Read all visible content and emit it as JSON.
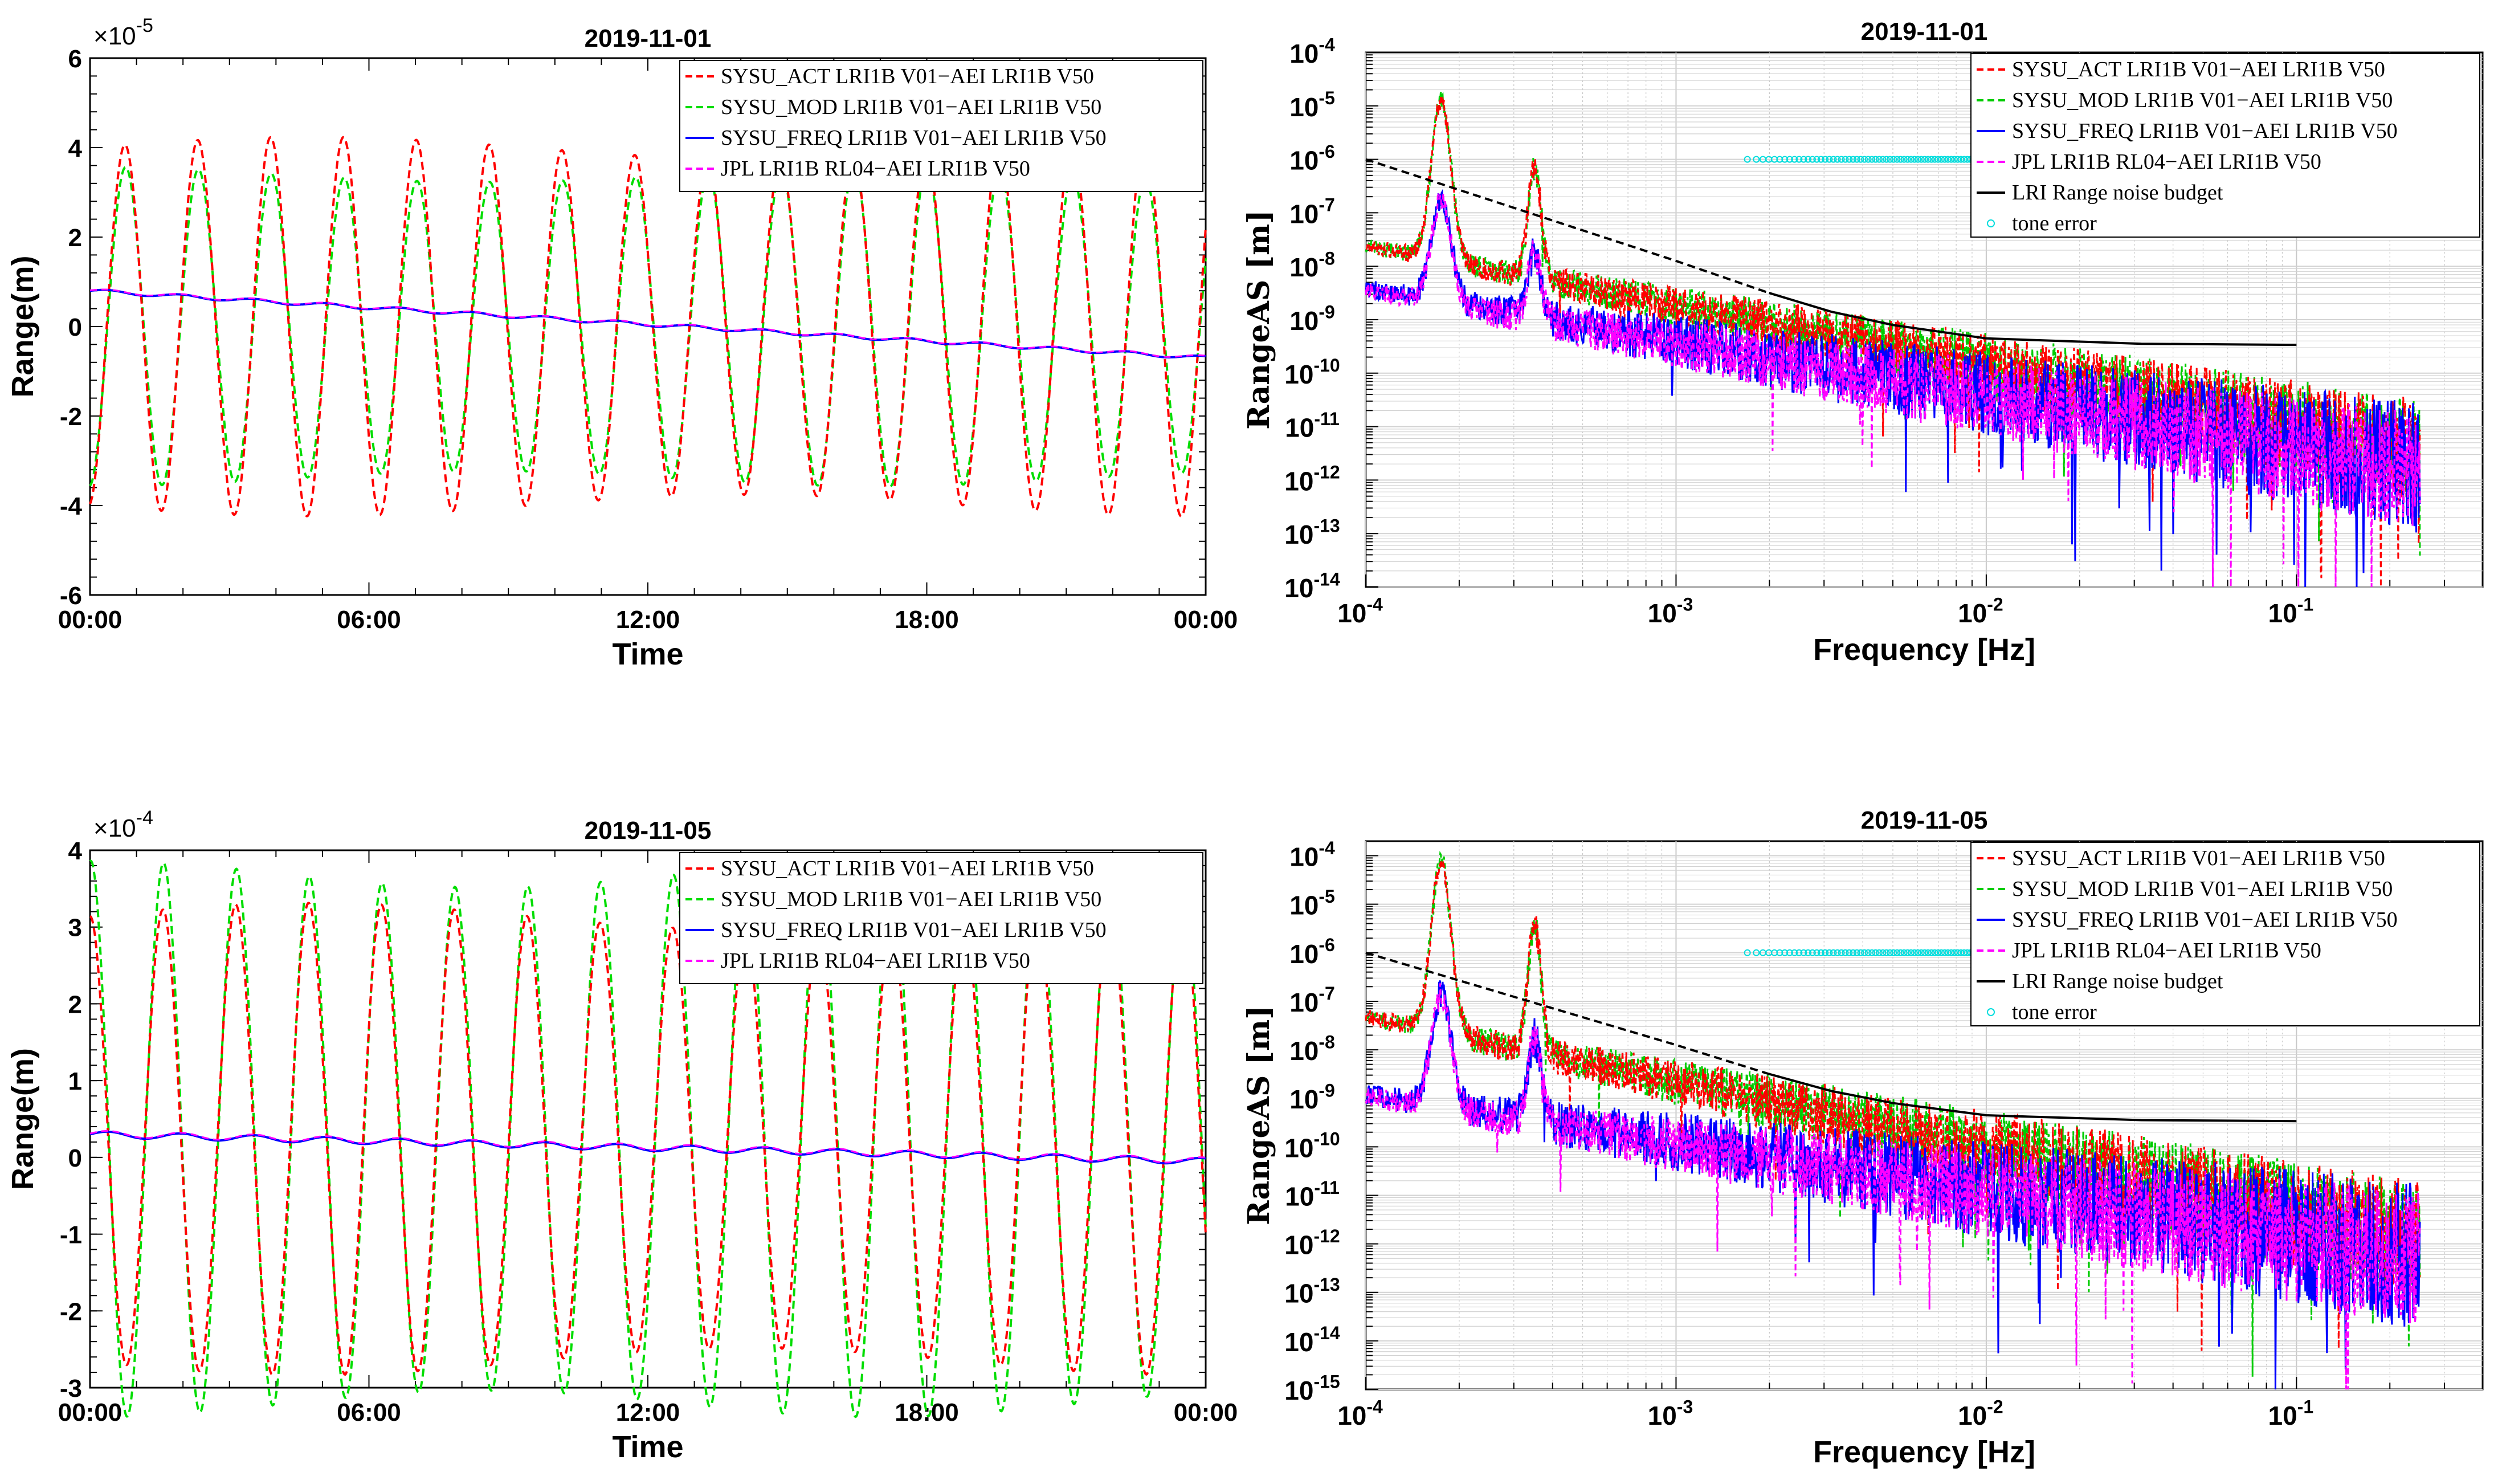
{
  "chart_data": [
    {
      "id": "top-left",
      "type": "line",
      "title": "2019-11-01",
      "xlabel": "Time",
      "ylabel": "Range(m)",
      "y_multiplier": "×10",
      "y_exponent": "-5",
      "x_ticks": [
        "00:00",
        "06:00",
        "12:00",
        "18:00",
        "00:00"
      ],
      "x_range_hours": [
        0,
        24
      ],
      "y_ticks": [
        "6",
        "4",
        "2",
        "0",
        "-2",
        "-4",
        "-6"
      ],
      "ylim": [
        -6,
        6
      ],
      "ytick_values": [
        6,
        4,
        2,
        0,
        -2,
        -4,
        -6
      ],
      "series_model": {
        "orbit_period_hours": 1.567,
        "act_amp": 4.0,
        "mod_amp": 3.4,
        "phase_hours": 0.75,
        "freq_start": 0.8,
        "freq_end": -0.7
      },
      "series": [
        {
          "name": "SYSU_ACT LRI1B V01−AEI LRI1B V50",
          "color": "#ff0000",
          "dash": "dashed",
          "amplitude_approx": 4.0
        },
        {
          "name": "SYSU_MOD LRI1B V01−AEI LRI1B V50",
          "color": "#00dd00",
          "dash": "dashed",
          "amplitude_approx": 3.4
        },
        {
          "name": "SYSU_FREQ LRI1B V01−AEI LRI1B V50",
          "color": "#0000ff",
          "dash": "solid",
          "start": 0.8,
          "end": -0.7
        },
        {
          "name": "JPL LRI1B RL04−AEI LRI1B V50",
          "color": "#ff00ff",
          "dash": "dashed",
          "start": 0.8,
          "end": -0.7
        }
      ]
    },
    {
      "id": "top-right",
      "type": "line",
      "title": "2019-11-01",
      "xlabel": "Frequency [Hz]",
      "ylabel": "RangeAS [m]",
      "x_scale": "log",
      "y_scale": "log",
      "xlim_exp": [
        -4,
        -0.4
      ],
      "ylim_exp": [
        -14,
        -4
      ],
      "x_ticks": [
        {
          "base": "10",
          "exp": "-4",
          "v": -4
        },
        {
          "base": "10",
          "exp": "-3",
          "v": -3
        },
        {
          "base": "10",
          "exp": "-2",
          "v": -2
        },
        {
          "base": "10",
          "exp": "-1",
          "v": -1
        }
      ],
      "y_ticks": [
        {
          "base": "10",
          "exp": "-4",
          "v": -4
        },
        {
          "base": "10",
          "exp": "-5",
          "v": -5
        },
        {
          "base": "10",
          "exp": "-6",
          "v": -6
        },
        {
          "base": "10",
          "exp": "-7",
          "v": -7
        },
        {
          "base": "10",
          "exp": "-8",
          "v": -8
        },
        {
          "base": "10",
          "exp": "-9",
          "v": -9
        },
        {
          "base": "10",
          "exp": "-10",
          "v": -10
        },
        {
          "base": "10",
          "exp": "-11",
          "v": -11
        },
        {
          "base": "10",
          "exp": "-12",
          "v": -12
        },
        {
          "base": "10",
          "exp": "-13",
          "v": -13
        },
        {
          "base": "10",
          "exp": "-14",
          "v": -14
        }
      ],
      "spectrum_model": {
        "act_peak1": -4.6,
        "act_peak2": -5.5,
        "act_base": -7.6,
        "freq_peak1": -6.5,
        "freq_peak2": -7.2,
        "freq_base": -8.4,
        "noise_end_low": -12.6,
        "noise_end_high": -10.7
      },
      "series": [
        {
          "name": "SYSU_ACT LRI1B V01−AEI LRI1B V50",
          "color": "#ff0000",
          "dash": "dashed"
        },
        {
          "name": "SYSU_MOD LRI1B V01−AEI LRI1B V50",
          "color": "#00cc00",
          "dash": "dashed"
        },
        {
          "name": "SYSU_FREQ LRI1B V01−AEI LRI1B V50",
          "color": "#0000ff",
          "dash": "solid"
        },
        {
          "name": "JPL LRI1B RL04−AEI LRI1B V50",
          "color": "#ff00ff",
          "dash": "dashed"
        },
        {
          "name": "LRI Range noise budget",
          "color": "#000000",
          "dash": "solid",
          "points_log": [
            [
              -4,
              -6
            ],
            [
              -3.5,
              -6.95
            ],
            [
              -3,
              -7.9
            ],
            [
              -2.7,
              -8.5
            ],
            [
              -2.5,
              -8.85
            ],
            [
              -2.3,
              -9.1
            ],
            [
              -2,
              -9.35
            ],
            [
              -1.5,
              -9.45
            ],
            [
              -1,
              -9.47
            ]
          ]
        },
        {
          "name": "tone error",
          "color": "#00dddd",
          "marker": "circle",
          "x_log_range": [
            -2.77,
            -2.02
          ],
          "y_log": -6.0
        }
      ]
    },
    {
      "id": "bottom-left",
      "type": "line",
      "title": "2019-11-05",
      "xlabel": "Time",
      "ylabel": "Range(m)",
      "y_multiplier": "×10",
      "y_exponent": "-4",
      "x_ticks": [
        "00:00",
        "06:00",
        "12:00",
        "18:00",
        "00:00"
      ],
      "x_range_hours": [
        0,
        24
      ],
      "y_ticks": [
        "4",
        "3",
        "2",
        "1",
        "0",
        "-1",
        "-2",
        "-3"
      ],
      "ylim": [
        -3,
        4
      ],
      "ytick_values": [
        4,
        3,
        2,
        1,
        0,
        -1,
        -2,
        -3
      ],
      "series_model": {
        "orbit_period_hours": 1.567,
        "act_amp": 2.9,
        "mod_amp": 3.45,
        "phase_hours": 0.0,
        "offset": 0.6,
        "freq_start": 0.3,
        "freq_end": -0.05
      },
      "series": [
        {
          "name": "SYSU_ACT LRI1B V01−AEI LRI1B V50",
          "color": "#ff0000",
          "dash": "dashed",
          "amplitude_approx": 2.9
        },
        {
          "name": "SYSU_MOD LRI1B V01−AEI LRI1B V50",
          "color": "#00dd00",
          "dash": "dashed",
          "amplitude_approx": 3.45
        },
        {
          "name": "SYSU_FREQ LRI1B V01−AEI LRI1B V50",
          "color": "#0000ff",
          "dash": "solid",
          "start": 0.3,
          "end": -0.05
        },
        {
          "name": "JPL LRI1B RL04−AEI LRI1B V50",
          "color": "#ff00ff",
          "dash": "dashed",
          "start": 0.3,
          "end": -0.05
        }
      ]
    },
    {
      "id": "bottom-right",
      "type": "line",
      "title": "2019-11-05",
      "xlabel": "Frequency [Hz]",
      "ylabel": "RangeAS [m]",
      "x_scale": "log",
      "y_scale": "log",
      "xlim_exp": [
        -4,
        -0.4
      ],
      "ylim_exp": [
        -15,
        -3.7
      ],
      "x_ticks": [
        {
          "base": "10",
          "exp": "-4",
          "v": -4
        },
        {
          "base": "10",
          "exp": "-3",
          "v": -3
        },
        {
          "base": "10",
          "exp": "-2",
          "v": -2
        },
        {
          "base": "10",
          "exp": "-1",
          "v": -1
        }
      ],
      "y_ticks": [
        {
          "base": "10",
          "exp": "-4",
          "v": -4
        },
        {
          "base": "10",
          "exp": "-5",
          "v": -5
        },
        {
          "base": "10",
          "exp": "-6",
          "v": -6
        },
        {
          "base": "10",
          "exp": "-7",
          "v": -7
        },
        {
          "base": "10",
          "exp": "-8",
          "v": -8
        },
        {
          "base": "10",
          "exp": "-9",
          "v": -9
        },
        {
          "base": "10",
          "exp": "-10",
          "v": -10
        },
        {
          "base": "10",
          "exp": "-11",
          "v": -11
        },
        {
          "base": "10",
          "exp": "-12",
          "v": -12
        },
        {
          "base": "10",
          "exp": "-13",
          "v": -13
        },
        {
          "base": "10",
          "exp": "-14",
          "v": -14
        },
        {
          "base": "10",
          "exp": "-15",
          "v": -15
        }
      ],
      "spectrum_model": {
        "act_peak1": -3.75,
        "act_peak2": -4.65,
        "act_base": -7.3,
        "freq_peak1": -6.6,
        "freq_peak2": -7.2,
        "freq_base": -8.9,
        "noise_end_low": -13.3,
        "noise_end_high": -10.9
      },
      "series": [
        {
          "name": "SYSU_ACT LRI1B V01−AEI LRI1B V50",
          "color": "#ff0000",
          "dash": "dashed"
        },
        {
          "name": "SYSU_MOD LRI1B V01−AEI LRI1B V50",
          "color": "#00cc00",
          "dash": "dashed"
        },
        {
          "name": "SYSU_FREQ LRI1B V01−AEI LRI1B V50",
          "color": "#0000ff",
          "dash": "solid"
        },
        {
          "name": "JPL LRI1B RL04−AEI LRI1B V50",
          "color": "#ff00ff",
          "dash": "dashed"
        },
        {
          "name": "LRI Range noise budget",
          "color": "#000000",
          "dash": "solid",
          "points_log": [
            [
              -4,
              -6
            ],
            [
              -3.5,
              -6.95
            ],
            [
              -3,
              -7.9
            ],
            [
              -2.7,
              -8.5
            ],
            [
              -2.5,
              -8.85
            ],
            [
              -2.3,
              -9.1
            ],
            [
              -2,
              -9.35
            ],
            [
              -1.5,
              -9.45
            ],
            [
              -1,
              -9.47
            ]
          ]
        },
        {
          "name": "tone error",
          "color": "#00dddd",
          "marker": "circle",
          "x_log_range": [
            -2.77,
            -2.02
          ],
          "y_log": -6.0
        }
      ]
    }
  ]
}
